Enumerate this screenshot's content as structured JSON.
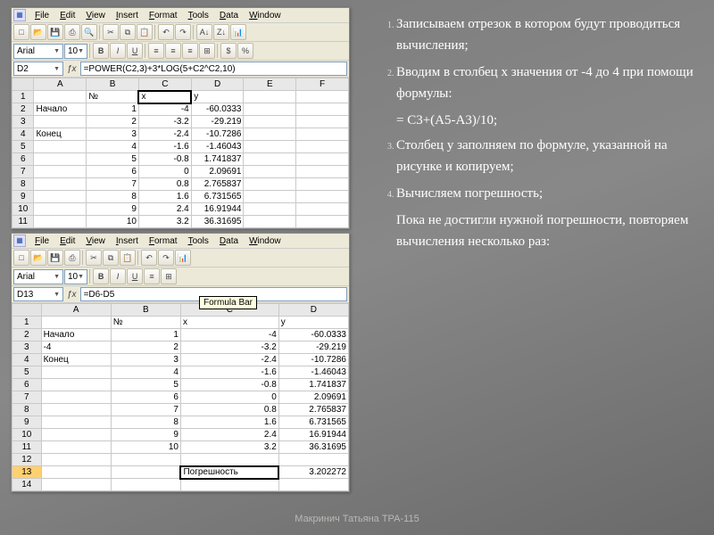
{
  "menus": [
    "File",
    "Edit",
    "View",
    "Insert",
    "Format",
    "Tools",
    "Data",
    "Window"
  ],
  "font": {
    "name": "Arial",
    "size": "10"
  },
  "win1": {
    "cellref": "D2",
    "formula": "=POWER(C2,3)+3*LOG(5+C2^C2,10)",
    "cols": [
      "A",
      "B",
      "C",
      "D",
      "E",
      "F"
    ],
    "rows": [
      [
        "1",
        "",
        "№",
        "x",
        "y",
        "",
        ""
      ],
      [
        "2",
        "Начало",
        "1",
        "-4",
        "-60.0333",
        "",
        ""
      ],
      [
        "3",
        "",
        "2",
        "-3.2",
        "-29.219",
        "",
        ""
      ],
      [
        "4",
        "Конец",
        "3",
        "-2.4",
        "-10.7286",
        "",
        ""
      ],
      [
        "5",
        "",
        "4",
        "-1.6",
        "-1.46043",
        "",
        ""
      ],
      [
        "6",
        "",
        "5",
        "-0.8",
        "1.741837",
        "",
        ""
      ],
      [
        "7",
        "",
        "6",
        "0",
        "2.09691",
        "",
        ""
      ],
      [
        "8",
        "",
        "7",
        "0.8",
        "2.765837",
        "",
        ""
      ],
      [
        "9",
        "",
        "8",
        "1.6",
        "6.731565",
        "",
        ""
      ],
      [
        "10",
        "",
        "9",
        "2.4",
        "16.91944",
        "",
        ""
      ],
      [
        "11",
        "",
        "10",
        "3.2",
        "36.31695",
        "",
        ""
      ]
    ]
  },
  "win2": {
    "cellref": "D13",
    "formula": "=D6-D5",
    "tooltip": "Formula Bar",
    "cols": [
      "A",
      "B",
      "C",
      "D"
    ],
    "rows": [
      [
        "1",
        "",
        "№",
        "x",
        "y"
      ],
      [
        "2",
        "Начало",
        "1",
        "-4",
        "-60.0333"
      ],
      [
        "3",
        "-4",
        "2",
        "-3.2",
        "-29.219"
      ],
      [
        "4",
        "Конец",
        "3",
        "-2.4",
        "-10.7286"
      ],
      [
        "5",
        "",
        "4",
        "-1.6",
        "-1.46043"
      ],
      [
        "6",
        "",
        "5",
        "-0.8",
        "1.741837"
      ],
      [
        "7",
        "",
        "6",
        "0",
        "2.09691"
      ],
      [
        "8",
        "",
        "7",
        "0.8",
        "2.765837"
      ],
      [
        "9",
        "",
        "8",
        "1.6",
        "6.731565"
      ],
      [
        "10",
        "",
        "9",
        "2.4",
        "16.91944"
      ],
      [
        "11",
        "",
        "10",
        "3.2",
        "36.31695"
      ],
      [
        "12",
        "",
        "",
        "",
        ""
      ],
      [
        "13",
        "",
        "",
        "Погрешность",
        "3.202272"
      ]
    ]
  },
  "text": {
    "i1": "Записываем отрезок в котором будут проводиться вычисления;",
    "i2": "Вводим в столбец x значения от -4 до 4 при помощи формулы:",
    "f": "= C3+(A5-A3)/10;",
    "i3": "Столбец y заполняем по формуле, указанной на рисунке и копируем;",
    "i4": "Вычисляем погрешность;",
    "p": "Пока не достигли нужной погрешности, повторяем вычисления несколько раз:"
  },
  "footer": "Макринич Татьяна   ТРА-115",
  "colors": {
    "bg": "#808080",
    "excel": "#ece9d8",
    "grid": "#c9c9c9",
    "hilite": "#ffd070"
  }
}
